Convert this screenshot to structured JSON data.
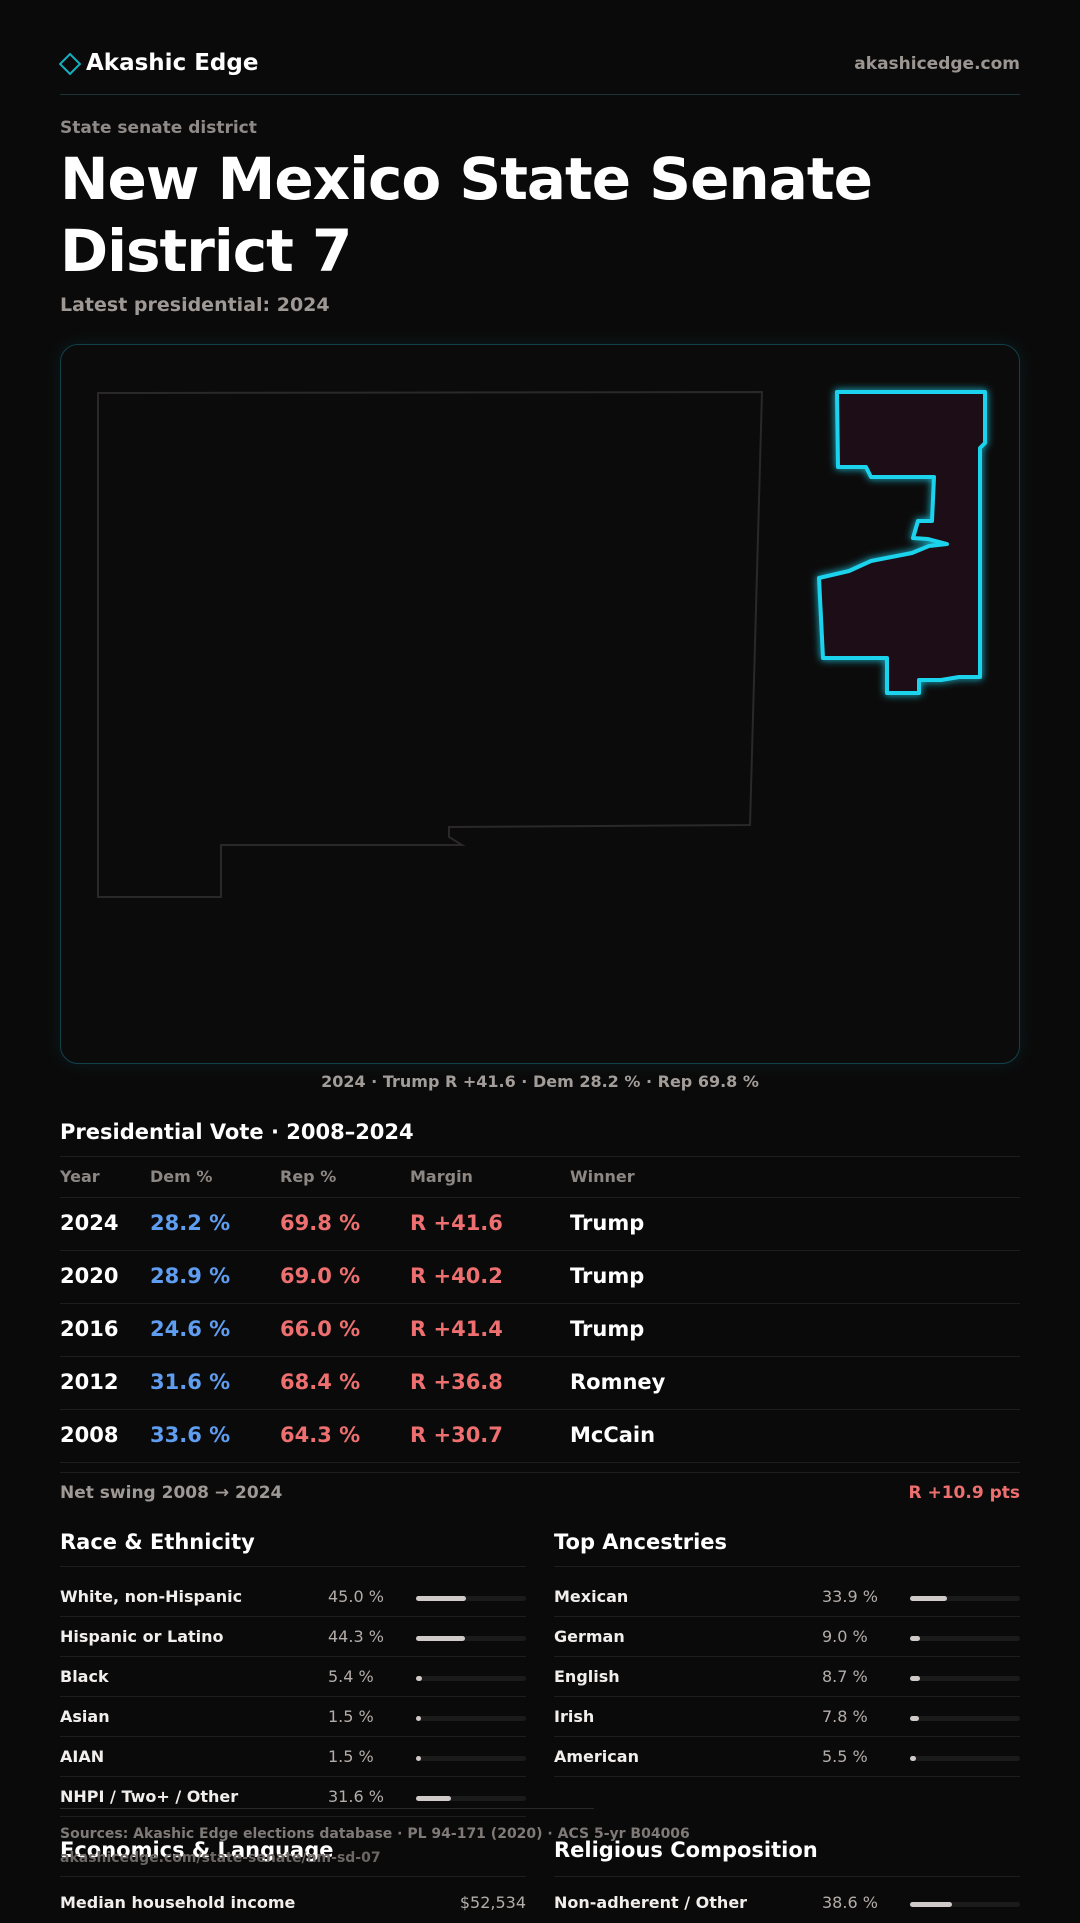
{
  "header": {
    "brand": "Akashic Edge",
    "domain": "akashicedge.com"
  },
  "kicker": "State senate district",
  "title": "New Mexico State Senate District 7",
  "subtitle": "Latest presidential: 2024",
  "map": {
    "caption": "2024 · Trump R +41.6 · Dem 28.2 % · Rep 69.8 %",
    "district_color": "#1fd3ee"
  },
  "presidential": {
    "title": "Presidential Vote · 2008–2024",
    "headers": [
      "Year",
      "Dem %",
      "Rep %",
      "Margin",
      "Winner"
    ],
    "rows": [
      {
        "year": "2024",
        "dem": "28.2 %",
        "rep": "69.8 %",
        "margin": "R +41.6",
        "winner": "Trump"
      },
      {
        "year": "2020",
        "dem": "28.9 %",
        "rep": "69.0 %",
        "margin": "R +40.2",
        "winner": "Trump"
      },
      {
        "year": "2016",
        "dem": "24.6 %",
        "rep": "66.0 %",
        "margin": "R +41.4",
        "winner": "Trump"
      },
      {
        "year": "2012",
        "dem": "31.6 %",
        "rep": "68.4 %",
        "margin": "R +36.8",
        "winner": "Romney"
      },
      {
        "year": "2008",
        "dem": "33.6 %",
        "rep": "64.3 %",
        "margin": "R +30.7",
        "winner": "McCain"
      }
    ]
  },
  "swing": {
    "label": "Net swing 2008 → 2024",
    "value": "R +10.9 pts"
  },
  "race": {
    "title": "Race & Ethnicity",
    "items": [
      {
        "label": "White, non-Hispanic",
        "pct": "45.0 %",
        "value": 45.0
      },
      {
        "label": "Hispanic or Latino",
        "pct": "44.3 %",
        "value": 44.3
      },
      {
        "label": "Black",
        "pct": "5.4 %",
        "value": 5.4
      },
      {
        "label": "Asian",
        "pct": "1.5 %",
        "value": 1.5
      },
      {
        "label": "AIAN",
        "pct": "1.5 %",
        "value": 1.5
      },
      {
        "label": "NHPI / Two+ / Other",
        "pct": "31.6 %",
        "value": 31.6
      }
    ]
  },
  "ancestry": {
    "title": "Top Ancestries",
    "items": [
      {
        "label": "Mexican",
        "pct": "33.9 %",
        "value": 33.9
      },
      {
        "label": "German",
        "pct": "9.0 %",
        "value": 9.0
      },
      {
        "label": "English",
        "pct": "8.7 %",
        "value": 8.7
      },
      {
        "label": "Irish",
        "pct": "7.8 %",
        "value": 7.8
      },
      {
        "label": "American",
        "pct": "5.5 %",
        "value": 5.5
      }
    ]
  },
  "sources": {
    "text": "Sources: Akashic Edge elections database · PL 94-171 (2020) · ACS 5-yr B04006",
    "url": "akashicedge.com/state-senate/nm-sd-07"
  },
  "economics": {
    "title": "Economics & Language",
    "items": [
      {
        "label": "Median household income",
        "value": "$52,534"
      }
    ]
  },
  "religion": {
    "title": "Religious Composition",
    "items": [
      {
        "label": "Non-adherent / Other",
        "pct": "38.6 %",
        "value": 38.6
      }
    ]
  }
}
